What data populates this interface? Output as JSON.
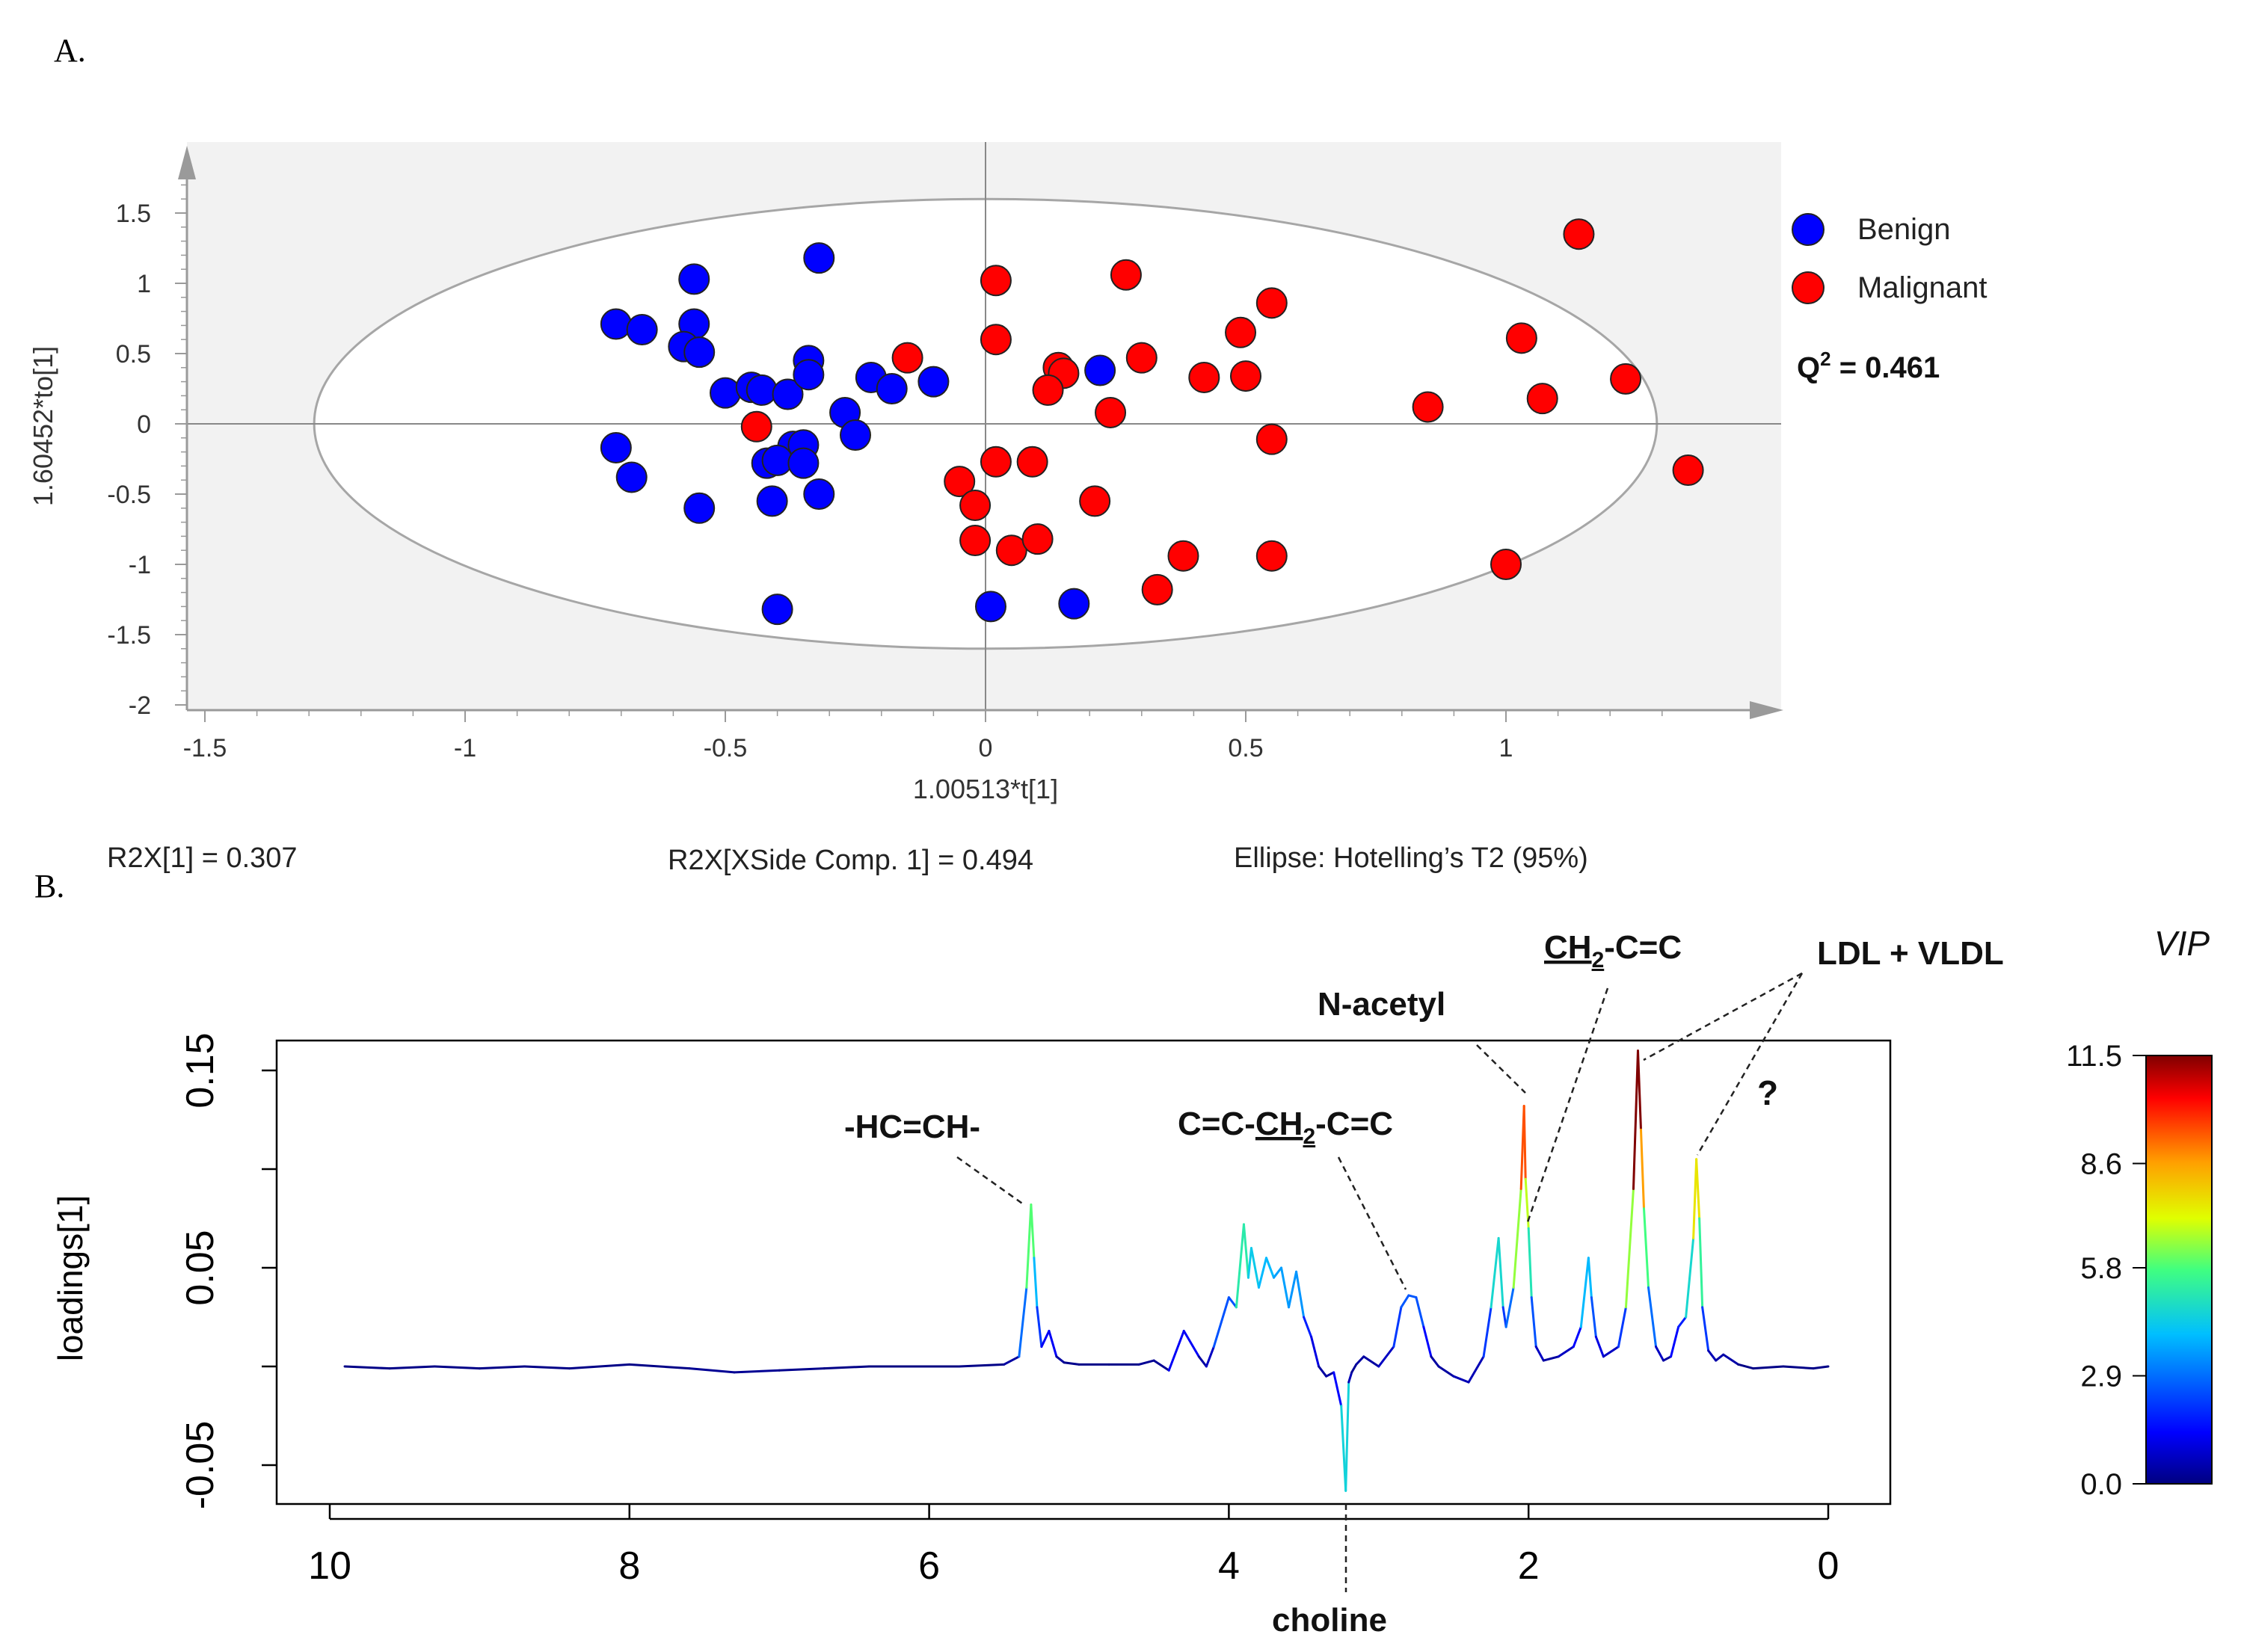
{
  "chart_data": [
    {
      "type": "scatter",
      "panel_label": "A.",
      "xlabel": "1.00513*t[1]",
      "ylabel": "1.60452*to[1]",
      "xlim": [
        -1.55,
        1.55
      ],
      "ylim": [
        -2.0,
        2.0
      ],
      "x_ticks": [
        "-1.5",
        "-1",
        "-0.5",
        "0",
        "0.5",
        "1"
      ],
      "x_tick_values": [
        -1.5,
        -1,
        -0.5,
        0,
        0.5,
        1
      ],
      "y_ticks": [
        "1.5",
        "1",
        "0.5",
        "0",
        "-0.5",
        "-1",
        "-1.5",
        "-2"
      ],
      "y_tick_values": [
        1.5,
        1,
        0.5,
        0,
        -0.5,
        -1,
        -1.5,
        -2
      ],
      "ellipse": {
        "cx": 0.0,
        "cy": 0.0,
        "rx": 1.29,
        "ry": 1.6
      },
      "series": [
        {
          "name": "Benign",
          "color": "#0000ff",
          "points": [
            [
              -0.56,
              1.03
            ],
            [
              -0.32,
              1.18
            ],
            [
              -0.71,
              0.71
            ],
            [
              -0.66,
              0.67
            ],
            [
              -0.56,
              0.71
            ],
            [
              -0.58,
              0.55
            ],
            [
              -0.55,
              0.51
            ],
            [
              -0.34,
              0.45
            ],
            [
              -0.5,
              0.22
            ],
            [
              -0.45,
              0.26
            ],
            [
              -0.43,
              0.24
            ],
            [
              -0.38,
              0.21
            ],
            [
              -0.34,
              0.35
            ],
            [
              -0.22,
              0.33
            ],
            [
              -0.18,
              0.25
            ],
            [
              -0.1,
              0.3
            ],
            [
              0.22,
              0.38
            ],
            [
              -0.27,
              0.08
            ],
            [
              -0.25,
              -0.08
            ],
            [
              -0.71,
              -0.17
            ],
            [
              -0.68,
              -0.38
            ],
            [
              -0.37,
              -0.16
            ],
            [
              -0.35,
              -0.15
            ],
            [
              -0.42,
              -0.28
            ],
            [
              -0.4,
              -0.26
            ],
            [
              -0.35,
              -0.28
            ],
            [
              -0.32,
              -0.5
            ],
            [
              -0.41,
              -0.55
            ],
            [
              -0.55,
              -0.6
            ],
            [
              -0.4,
              -1.32
            ],
            [
              0.01,
              -1.3
            ],
            [
              0.17,
              -1.28
            ]
          ]
        },
        {
          "name": "Malignant",
          "color": "#ff0000",
          "points": [
            [
              1.14,
              1.35
            ],
            [
              0.27,
              1.06
            ],
            [
              0.02,
              1.02
            ],
            [
              0.55,
              0.86
            ],
            [
              0.02,
              0.6
            ],
            [
              -0.15,
              0.47
            ],
            [
              0.14,
              0.4
            ],
            [
              0.15,
              0.36
            ],
            [
              0.12,
              0.24
            ],
            [
              0.3,
              0.47
            ],
            [
              0.49,
              0.65
            ],
            [
              0.42,
              0.33
            ],
            [
              0.5,
              0.34
            ],
            [
              0.24,
              0.08
            ],
            [
              -0.44,
              -0.02
            ],
            [
              0.85,
              0.12
            ],
            [
              1.03,
              0.61
            ],
            [
              1.07,
              0.18
            ],
            [
              1.23,
              0.32
            ],
            [
              1.35,
              -0.33
            ],
            [
              0.55,
              -0.11
            ],
            [
              0.02,
              -0.27
            ],
            [
              0.09,
              -0.27
            ],
            [
              -0.05,
              -0.41
            ],
            [
              -0.02,
              -0.58
            ],
            [
              0.21,
              -0.55
            ],
            [
              -0.02,
              -0.83
            ],
            [
              0.05,
              -0.9
            ],
            [
              0.1,
              -0.82
            ],
            [
              0.38,
              -0.94
            ],
            [
              0.55,
              -0.94
            ],
            [
              0.33,
              -1.18
            ],
            [
              1.0,
              -1.0
            ]
          ]
        }
      ],
      "legend": [
        {
          "label": "Benign",
          "color": "#0000ff"
        },
        {
          "label": "Malignant",
          "color": "#ff0000"
        }
      ],
      "q2_label": "Q",
      "q2_sup": "2",
      "q2_value": " = 0.461",
      "footer": {
        "r2x": "R2X[1] = 0.307",
        "r2x_side": "R2X[XSide Comp. 1] = 0.494",
        "ellipse_note": "Ellipse: Hotelling’s T2 (95%)"
      }
    },
    {
      "type": "line",
      "panel_label": "B.",
      "xlabel": "",
      "ylabel": "loadings[1]",
      "xlim": [
        10,
        0
      ],
      "ylim": [
        -0.07,
        0.17
      ],
      "x_ticks": [
        "10",
        "8",
        "6",
        "4",
        "2",
        "0"
      ],
      "x_tick_values": [
        10,
        8,
        6,
        4,
        2,
        0
      ],
      "y_ticks": [
        "0.15",
        "0.1",
        "0.05",
        "0",
        "-0.05"
      ],
      "y_tick_values": [
        0.15,
        0.1,
        0.05,
        0,
        -0.05
      ],
      "y_tick_labels_shown": [
        "0.15",
        "0.05",
        "-0.05"
      ],
      "spectrum": {
        "x": [
          9.9,
          9.6,
          9.3,
          9.0,
          8.7,
          8.4,
          8.0,
          7.6,
          7.3,
          7.0,
          6.7,
          6.4,
          6.1,
          5.8,
          5.5,
          5.4,
          5.35,
          5.32,
          5.3,
          5.28,
          5.25,
          5.2,
          5.15,
          5.1,
          5.0,
          4.8,
          4.6,
          4.5,
          4.4,
          4.3,
          4.2,
          4.15,
          4.1,
          4.0,
          3.95,
          3.9,
          3.87,
          3.85,
          3.8,
          3.75,
          3.7,
          3.65,
          3.6,
          3.55,
          3.5,
          3.45,
          3.4,
          3.35,
          3.3,
          3.25,
          3.22,
          3.2,
          3.18,
          3.15,
          3.1,
          3.0,
          2.9,
          2.85,
          2.8,
          2.75,
          2.7,
          2.65,
          2.6,
          2.5,
          2.4,
          2.3,
          2.25,
          2.2,
          2.17,
          2.15,
          2.1,
          2.05,
          2.03,
          2.02,
          2.0,
          1.98,
          1.95,
          1.9,
          1.8,
          1.7,
          1.65,
          1.6,
          1.58,
          1.55,
          1.5,
          1.4,
          1.35,
          1.3,
          1.27,
          1.25,
          1.23,
          1.2,
          1.15,
          1.1,
          1.05,
          1.0,
          0.95,
          0.9,
          0.88,
          0.86,
          0.84,
          0.8,
          0.75,
          0.7,
          0.6,
          0.5,
          0.3,
          0.1,
          0.0
        ],
        "y": [
          0.0,
          -0.001,
          0.0,
          -0.001,
          0.0,
          -0.001,
          0.001,
          -0.001,
          -0.003,
          -0.002,
          -0.001,
          0.0,
          0.0,
          0.0,
          0.001,
          0.005,
          0.04,
          0.082,
          0.055,
          0.03,
          0.01,
          0.018,
          0.005,
          0.002,
          0.001,
          0.001,
          0.001,
          0.003,
          -0.002,
          0.018,
          0.005,
          0.0,
          0.01,
          0.035,
          0.03,
          0.072,
          0.045,
          0.06,
          0.04,
          0.055,
          0.045,
          0.05,
          0.03,
          0.048,
          0.025,
          0.015,
          0.0,
          -0.005,
          -0.003,
          -0.02,
          -0.063,
          -0.008,
          -0.003,
          0.001,
          0.005,
          0.0,
          0.01,
          0.03,
          0.036,
          0.035,
          0.02,
          0.005,
          0.0,
          -0.005,
          -0.008,
          0.005,
          0.03,
          0.065,
          0.03,
          0.02,
          0.04,
          0.09,
          0.132,
          0.095,
          0.07,
          0.035,
          0.01,
          0.003,
          0.005,
          0.01,
          0.02,
          0.055,
          0.035,
          0.015,
          0.005,
          0.01,
          0.03,
          0.09,
          0.16,
          0.12,
          0.08,
          0.04,
          0.01,
          0.003,
          0.005,
          0.02,
          0.025,
          0.065,
          0.105,
          0.075,
          0.03,
          0.008,
          0.003,
          0.006,
          0.001,
          -0.001,
          0.0,
          -0.001,
          0.0
        ]
      },
      "annotations": [
        {
          "id": "hc",
          "text": "-HC=CH-"
        },
        {
          "id": "cc",
          "text_pre": "C=C-",
          "text_ul": "CH",
          "text_sub": "2",
          "text_post": "-C=C"
        },
        {
          "id": "nac",
          "text": "N-acetyl"
        },
        {
          "id": "ch2",
          "text_ul": "CH",
          "text_sub": "2",
          "text_post": "-C=C"
        },
        {
          "id": "ldl",
          "text": "LDL + VLDL"
        },
        {
          "id": "q",
          "text": "?"
        },
        {
          "id": "cho",
          "text": "choline"
        }
      ],
      "colorbar": {
        "title": "VIP",
        "min": 0.0,
        "max": 11.5,
        "tick_labels": [
          "11.5",
          "8.6",
          "5.8",
          "2.9",
          "0.0"
        ],
        "tick_values": [
          11.5,
          8.6,
          5.8,
          2.9,
          0.0
        ]
      }
    }
  ]
}
